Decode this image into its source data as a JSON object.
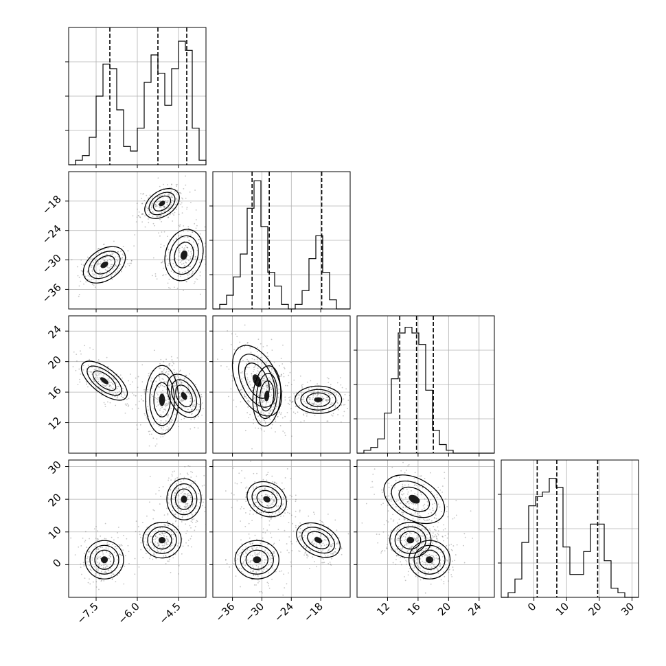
{
  "chart_data": {
    "type": "corner",
    "parameters": [
      {
        "range": [
          -8.5,
          -3.5
        ],
        "ticks": [
          -7.5,
          -6.0,
          -4.5
        ],
        "tick_labels": [
          "−7.5",
          "−6.0",
          "−4.5"
        ],
        "hist_counts": [
          0,
          1,
          2,
          6,
          15,
          22,
          21,
          12,
          4,
          3,
          8,
          18,
          24,
          20,
          13,
          21,
          27,
          25,
          8,
          1
        ],
        "hist_max": 30,
        "quantiles": [
          -7.0,
          -5.25,
          -4.2
        ]
      },
      {
        "range": [
          -40,
          -12
        ],
        "ticks": [
          -36,
          -30,
          -24,
          -18
        ],
        "tick_labels": [
          "−36",
          "−30",
          "−24",
          "−18"
        ],
        "hist_counts": [
          0,
          1,
          3,
          7,
          12,
          22,
          28,
          18,
          8,
          5,
          1,
          0,
          1,
          4,
          11,
          16,
          8,
          2,
          0,
          0
        ],
        "hist_max": 30,
        "quantiles": [
          -32.0,
          -28.5,
          -17.8
        ]
      },
      {
        "range": [
          8,
          26
        ],
        "ticks": [
          12,
          16,
          20,
          24
        ],
        "tick_labels": [
          "12",
          "16",
          "20",
          "24"
        ],
        "hist_counts": [
          0,
          1,
          2,
          5,
          14,
          26,
          42,
          44,
          42,
          38,
          22,
          8,
          3,
          1,
          0,
          0,
          0,
          0,
          0,
          0
        ],
        "hist_max": 48,
        "quantiles": [
          13.6,
          15.8,
          18.0
        ]
      },
      {
        "range": [
          -10,
          32
        ],
        "ticks": [
          0,
          10,
          20,
          30
        ],
        "tick_labels": [
          "0",
          "10",
          "20",
          "30"
        ],
        "hist_counts": [
          0,
          1,
          4,
          12,
          20,
          22,
          23,
          26,
          24,
          11,
          5,
          5,
          10,
          16,
          16,
          8,
          2,
          1,
          0,
          0
        ],
        "hist_max": 30,
        "quantiles": [
          1.0,
          7.0,
          19.5
        ]
      }
    ],
    "clusters": [
      {
        "means": [
          -7.2,
          -31,
          17.5,
          1.5
        ]
      },
      {
        "means": [
          -5.1,
          -18.5,
          15.0,
          7.5
        ]
      },
      {
        "means": [
          -4.3,
          -29,
          15.5,
          20.0
        ]
      }
    ],
    "grid": true
  }
}
